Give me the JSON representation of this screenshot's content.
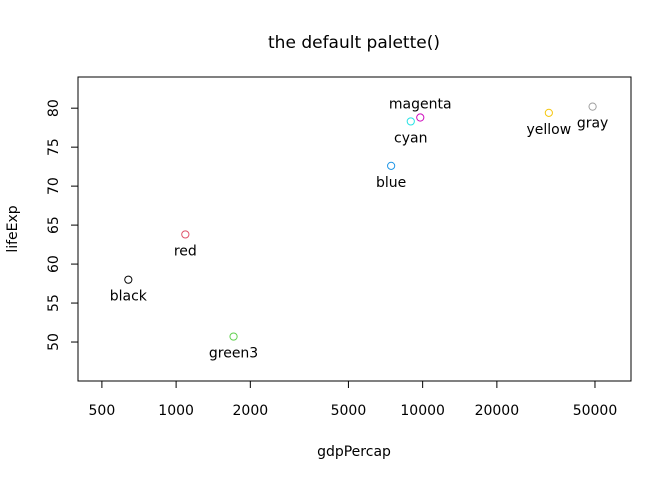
{
  "chart_data": {
    "type": "scatter",
    "title": "the default palette()",
    "xlabel": "gdpPercap",
    "ylabel": "lifeExp",
    "xscale": "log",
    "xlim": [
      400,
      70000
    ],
    "ylim": [
      45,
      84
    ],
    "xticks": [
      500,
      1000,
      2000,
      5000,
      10000,
      20000,
      50000
    ],
    "xtick_labels": [
      "500",
      "1000",
      "2000",
      "5000",
      "10000",
      "20000",
      "50000"
    ],
    "yticks": [
      50,
      55,
      60,
      65,
      70,
      75,
      80
    ],
    "ytick_labels": [
      "50",
      "55",
      "60",
      "65",
      "70",
      "75",
      "80"
    ],
    "grid": false,
    "marker": "open-circle",
    "points": [
      {
        "label": "black",
        "x": 640,
        "y": 58.0,
        "color": "#000000",
        "label_pos": "below"
      },
      {
        "label": "red",
        "x": 1090,
        "y": 63.8,
        "color": "#DF536B",
        "label_pos": "below"
      },
      {
        "label": "green3",
        "x": 1710,
        "y": 50.7,
        "color": "#61D04F",
        "label_pos": "below"
      },
      {
        "label": "blue",
        "x": 7450,
        "y": 72.6,
        "color": "#2297E6",
        "label_pos": "below"
      },
      {
        "label": "cyan",
        "x": 8950,
        "y": 78.3,
        "color": "#28E2E5",
        "label_pos": "below"
      },
      {
        "label": "magenta",
        "x": 9780,
        "y": 78.8,
        "color": "#CD0BBC",
        "label_pos": "above"
      },
      {
        "label": "yellow",
        "x": 32500,
        "y": 79.4,
        "color": "#F5C710",
        "label_pos": "below"
      },
      {
        "label": "gray",
        "x": 48900,
        "y": 80.2,
        "color": "#9E9E9E",
        "label_pos": "below"
      }
    ]
  }
}
